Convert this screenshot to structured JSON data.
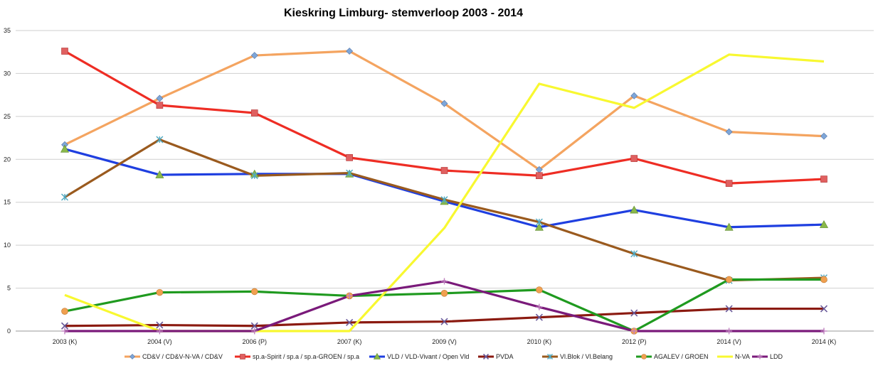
{
  "chart_data": {
    "type": "line",
    "title": "Kieskring Limburg- stemverloop 2003 - 2014",
    "xlabel": "",
    "ylabel": "",
    "ylim": [
      0,
      35
    ],
    "yticks": [
      0,
      5,
      10,
      15,
      20,
      25,
      30,
      35
    ],
    "grid": true,
    "legend": "bottom",
    "categories": [
      "2003 (K)",
      "2004 (V)",
      "2006 (P)",
      "2007 (K)",
      "2009 (V)",
      "2010 (K)",
      "2012 (P)",
      "2014 (V)",
      "2014 (K)"
    ],
    "series": [
      {
        "name": "CD&V / CD&V-N-VA / CD&V",
        "color": "#f4a460",
        "marker": "diamond",
        "marker_color": "#7ea6d8",
        "values": [
          21.7,
          27.1,
          32.1,
          32.6,
          26.5,
          18.8,
          27.4,
          23.2,
          22.7
        ]
      },
      {
        "name": "sp.a-Spirit / sp.a / sp.a-GROEN / sp.a",
        "color": "#ee2d24",
        "marker": "square",
        "marker_color": "#e06060",
        "values": [
          32.6,
          26.3,
          25.4,
          20.2,
          18.7,
          18.1,
          20.1,
          17.2,
          17.7
        ]
      },
      {
        "name": "VLD / VLD-Vivant / Open Vld",
        "color": "#1f3fe0",
        "marker": "triangle",
        "marker_color": "#8ab84a",
        "values": [
          21.2,
          18.2,
          18.3,
          18.3,
          15.1,
          12.1,
          14.1,
          12.1,
          12.4
        ]
      },
      {
        "name": "PVDA",
        "color": "#8b1a10",
        "marker": "x",
        "marker_color": "#6a5a9a",
        "values": [
          0.6,
          0.7,
          0.6,
          1.0,
          1.1,
          1.6,
          2.1,
          2.6,
          2.6
        ]
      },
      {
        "name": "Vl.Blok / Vl.Belang",
        "color": "#9a5a1e",
        "marker": "star",
        "marker_color": "#4fa8c0",
        "values": [
          15.6,
          22.3,
          18.1,
          18.4,
          15.3,
          12.7,
          9.0,
          5.9,
          6.2
        ]
      },
      {
        "name": "AGALEV / GROEN",
        "color": "#1f9a1f",
        "marker": "circle",
        "marker_color": "#f0a050",
        "values": [
          2.3,
          4.5,
          4.6,
          4.1,
          4.4,
          4.8,
          0.0,
          6.0,
          6.0
        ]
      },
      {
        "name": "N-VA",
        "color": "#f8f830",
        "marker": "none",
        "marker_color": "#f8f830",
        "values": [
          4.2,
          0.0,
          0.0,
          0.0,
          12.0,
          28.8,
          26.0,
          32.2,
          31.4
        ]
      },
      {
        "name": "LDD",
        "color": "#7a1a7a",
        "marker": "plus",
        "marker_color": "#c080c0",
        "values": [
          0.0,
          0.0,
          0.0,
          4.1,
          5.8,
          2.8,
          0.0,
          0.0,
          0.0
        ]
      }
    ]
  }
}
